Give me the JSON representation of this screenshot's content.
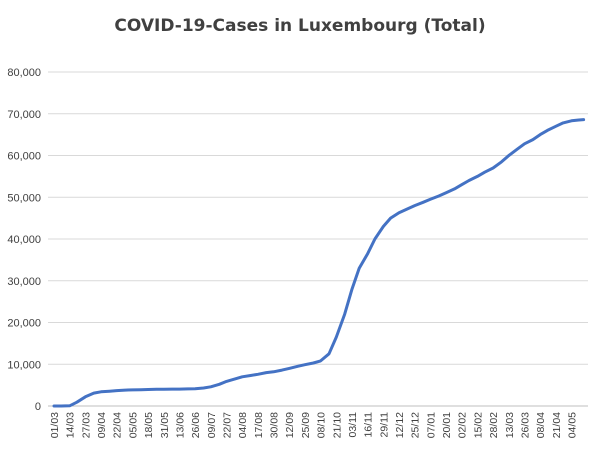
{
  "chart_data": {
    "type": "line",
    "title": "COVID-19-Cases in Luxembourg (Total)",
    "xlabel": "",
    "ylabel": "",
    "ylim": [
      0,
      80000
    ],
    "y_ticks": [
      "0",
      "10,000",
      "20,000",
      "30,000",
      "40,000",
      "50,000",
      "60,000",
      "70,000",
      "80,000"
    ],
    "x_tick_labels": [
      "01/03",
      "14/03",
      "27/03",
      "09/04",
      "22/04",
      "05/05",
      "18/05",
      "31/05",
      "13/06",
      "26/06",
      "09/07",
      "22/07",
      "04/08",
      "17/08",
      "30/08",
      "12/09",
      "25/09",
      "08/10",
      "21/10",
      "03/11",
      "16/11",
      "29/11",
      "12/12",
      "25/12",
      "07/01",
      "20/01",
      "02/02",
      "15/02",
      "28/02",
      "13/03",
      "26/03",
      "08/04",
      "21/04",
      "04/05"
    ],
    "grid": true,
    "legend": "none",
    "line_color": "#4472C4",
    "series": [
      {
        "x": [
          "01/03",
          "07/03",
          "14/03",
          "20/03",
          "27/03",
          "03/04",
          "09/04",
          "16/04",
          "22/04",
          "29/04",
          "05/05",
          "12/05",
          "18/05",
          "25/05",
          "31/05",
          "07/06",
          "13/06",
          "20/06",
          "26/06",
          "03/07",
          "09/07",
          "16/07",
          "22/07",
          "29/07",
          "04/08",
          "11/08",
          "17/08",
          "24/08",
          "30/08",
          "06/09",
          "12/09",
          "19/09",
          "25/09",
          "02/10",
          "08/10",
          "15/10",
          "21/10",
          "28/10",
          "03/11",
          "09/11",
          "16/11",
          "22/11",
          "29/11",
          "05/12",
          "12/12",
          "19/12",
          "25/12",
          "01/01",
          "07/01",
          "14/01",
          "20/01",
          "27/01",
          "02/02",
          "08/02",
          "15/02",
          "21/02",
          "28/02",
          "07/03",
          "13/03",
          "20/03",
          "26/03",
          "02/04",
          "08/04",
          "14/04",
          "21/04",
          "27/04",
          "04/05",
          "10/05",
          "14/05"
        ],
        "values": [
          0,
          0,
          50,
          900,
          2200,
          3100,
          3400,
          3550,
          3700,
          3800,
          3850,
          3900,
          3950,
          4000,
          4000,
          4050,
          4050,
          4100,
          4150,
          4300,
          4600,
          5200,
          5900,
          6500,
          7000,
          7300,
          7600,
          8000,
          8200,
          8600,
          9000,
          9500,
          9900,
          10300,
          10800,
          12500,
          16500,
          22000,
          28000,
          33000,
          36500,
          40000,
          43000,
          45000,
          46300,
          47200,
          48000,
          48800,
          49500,
          50300,
          51100,
          52000,
          53000,
          54000,
          55000,
          56000,
          57000,
          58500,
          60000,
          61500,
          62800,
          63800,
          65000,
          66000,
          67000,
          67800,
          68300,
          68500,
          68600
        ]
      }
    ]
  }
}
